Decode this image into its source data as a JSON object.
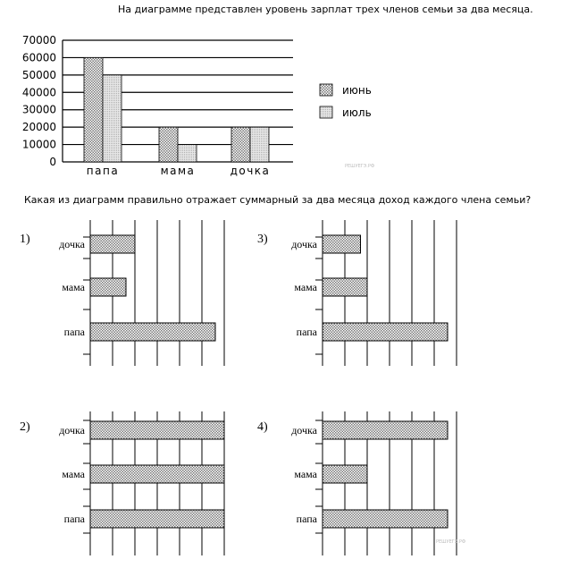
{
  "texts": {
    "question_top": "На диаграмме представлен уровень зарплат трех членов семьи за два месяца.",
    "question_bottom": "Какая из диаграмм правильно отражает суммарный за два месяца доход каждого члена семьи?",
    "watermark": "РЕШУЕГЭ.РФ"
  },
  "colors": {
    "june": "#9a9a9a",
    "july": "#d0d0d0",
    "hatch": "#8a8a8a"
  },
  "chart_data": [
    {
      "type": "bar",
      "categories": [
        "папа",
        "мама",
        "дочка"
      ],
      "series": [
        {
          "name": "июнь",
          "values": [
            60000,
            20000,
            20000
          ]
        },
        {
          "name": "июль",
          "values": [
            50000,
            10000,
            20000
          ]
        }
      ],
      "ylim": [
        0,
        70000
      ],
      "yticks": [
        "0",
        "10000",
        "20000",
        "30000",
        "40000",
        "50000",
        "60000",
        "70000"
      ],
      "grid": true,
      "legend": "right"
    },
    {
      "type": "bar",
      "orientation": "horizontal",
      "option": "1)",
      "categories": [
        "дочка",
        "мама",
        "папа"
      ],
      "values": [
        2,
        1.6,
        5.6
      ],
      "xlim": [
        0,
        6
      ]
    },
    {
      "type": "bar",
      "orientation": "horizontal",
      "option": "2)",
      "categories": [
        "дочка",
        "мама",
        "папа"
      ],
      "values": [
        6,
        6,
        6
      ],
      "xlim": [
        0,
        6
      ]
    },
    {
      "type": "bar",
      "orientation": "horizontal",
      "option": "3)",
      "categories": [
        "дочка",
        "мама",
        "папа"
      ],
      "values": [
        1.7,
        2,
        5.6
      ],
      "xlim": [
        0,
        6
      ]
    },
    {
      "type": "bar",
      "orientation": "horizontal",
      "option": "4)",
      "categories": [
        "дочка",
        "мама",
        "папа"
      ],
      "values": [
        5.6,
        2,
        5.6
      ],
      "xlim": [
        0,
        6
      ]
    }
  ]
}
